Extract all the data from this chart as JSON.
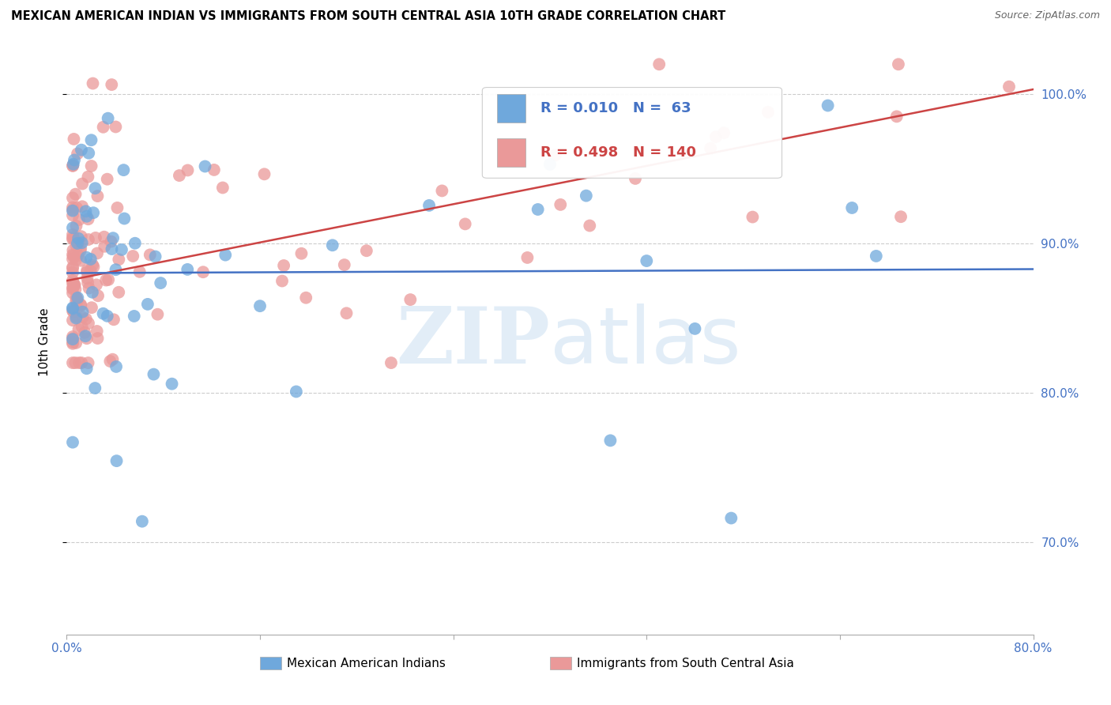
{
  "title": "MEXICAN AMERICAN INDIAN VS IMMIGRANTS FROM SOUTH CENTRAL ASIA 10TH GRADE CORRELATION CHART",
  "source": "Source: ZipAtlas.com",
  "ylabel": "10th Grade",
  "xlim": [
    0.0,
    0.8
  ],
  "ylim": [
    0.638,
    1.03
  ],
  "blue_R": 0.01,
  "blue_N": 63,
  "pink_R": 0.498,
  "pink_N": 140,
  "legend_label_blue": "Mexican American Indians",
  "legend_label_pink": "Immigrants from South Central Asia",
  "watermark_zip": "ZIP",
  "watermark_atlas": "atlas",
  "blue_color": "#6fa8dc",
  "pink_color": "#ea9999",
  "blue_line_color": "#4472c4",
  "pink_line_color": "#cc4444",
  "grid_color": "#cccccc",
  "right_axis_color": "#4472c4",
  "ytick_positions": [
    0.7,
    0.8,
    0.9,
    1.0
  ],
  "ytick_labels": [
    "70.0%",
    "80.0%",
    "90.0%",
    "100.0%"
  ],
  "xtick_positions": [
    0.0,
    0.16,
    0.32,
    0.48,
    0.64,
    0.8
  ],
  "xtick_labels": [
    "0.0%",
    "",
    "",
    "",
    "",
    "80.0%"
  ]
}
